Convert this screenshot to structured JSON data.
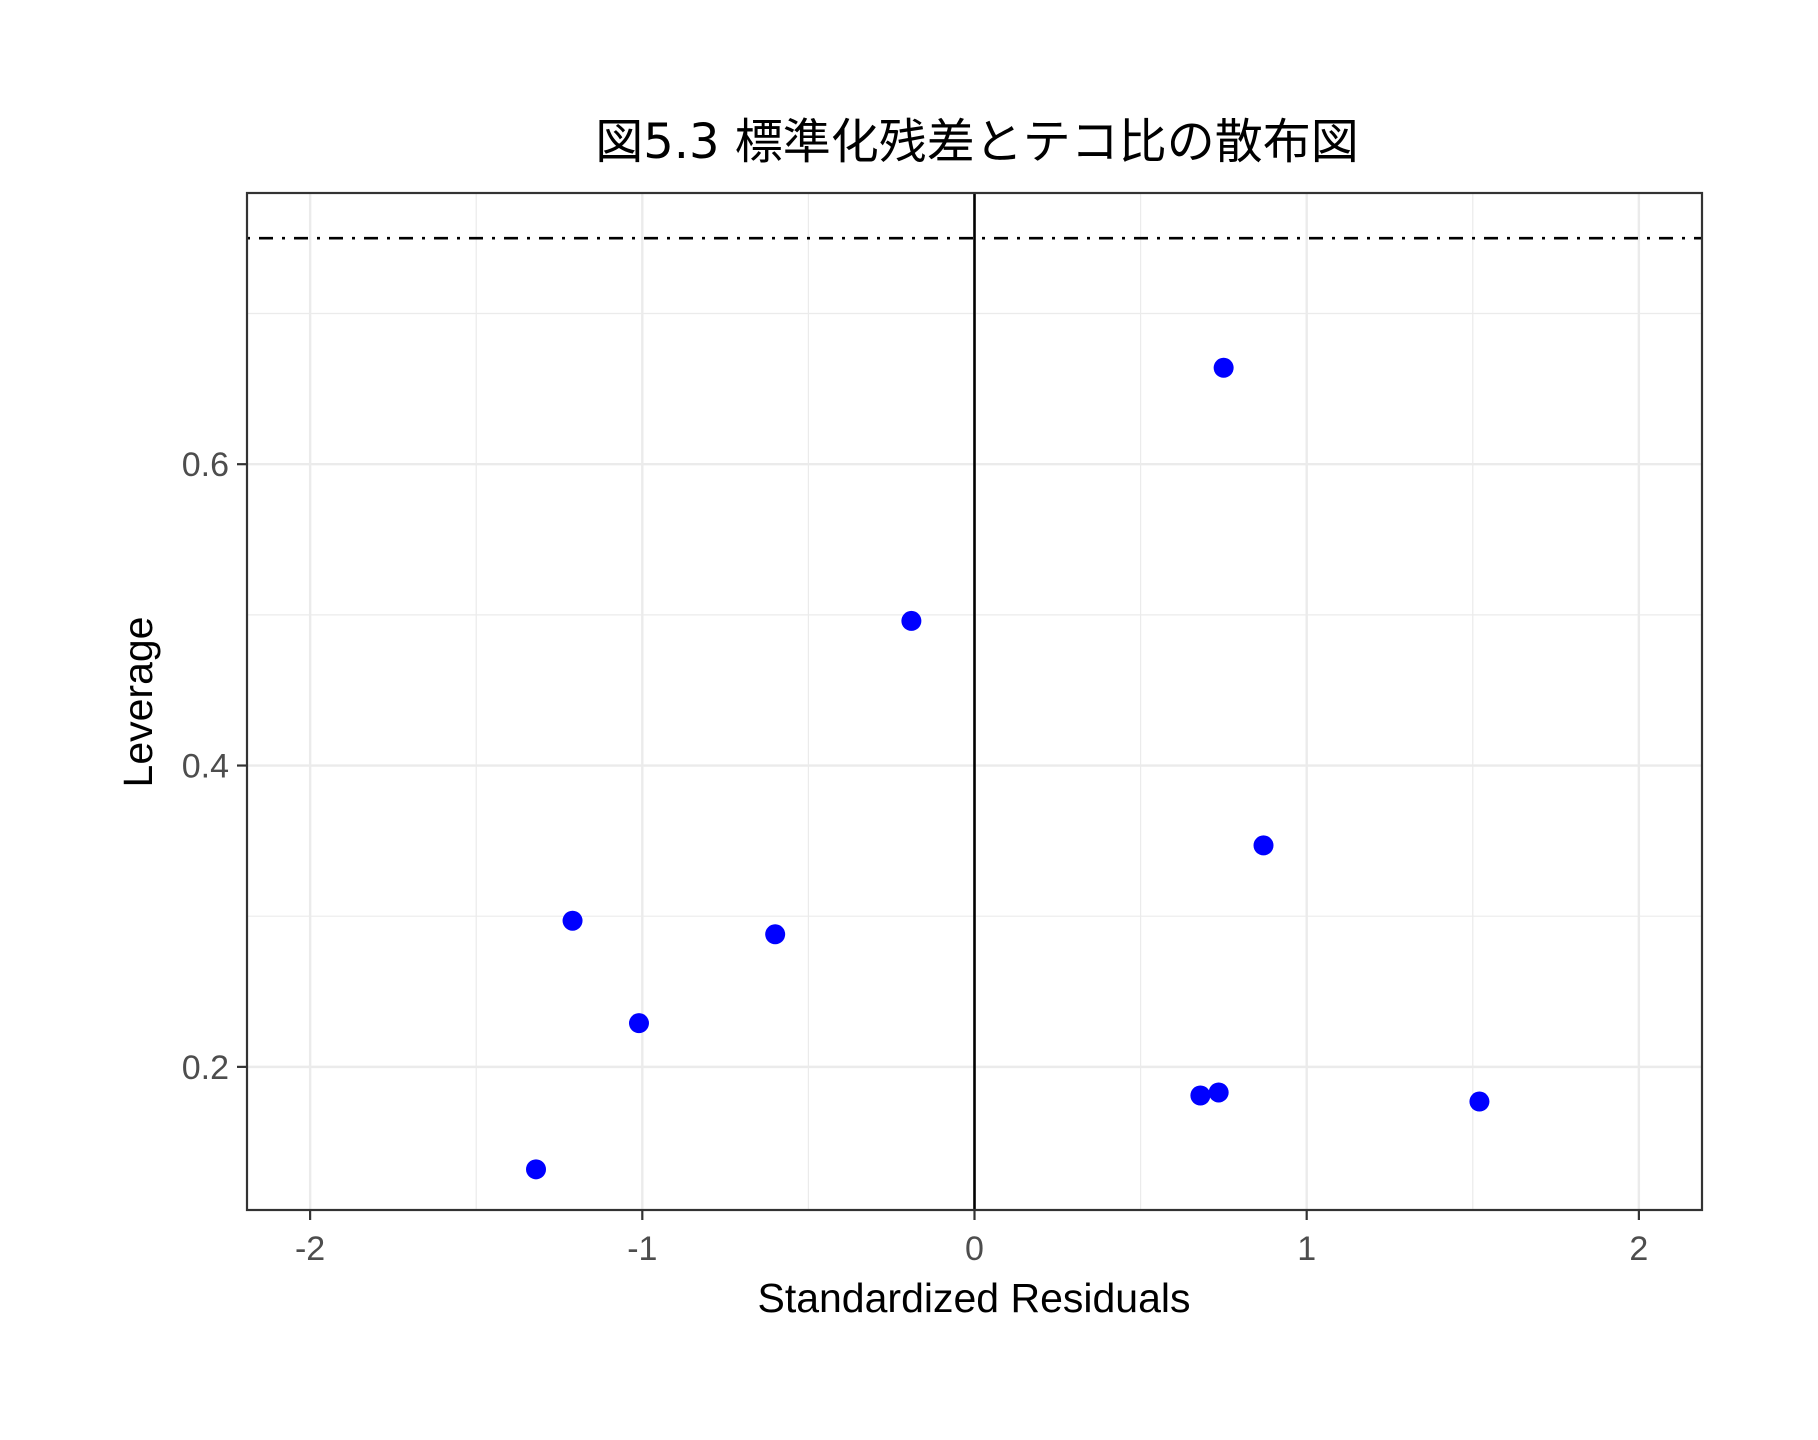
{
  "chart_data": {
    "type": "scatter",
    "title": "図5.3 標準化残差とテコ比の散布図",
    "xlabel": "Standardized Residuals",
    "ylabel": "Leverage",
    "xlim": [
      -2.19,
      2.19
    ],
    "ylim": [
      0.105,
      0.78
    ],
    "x_ticks": [
      -2,
      -1,
      0,
      1,
      2
    ],
    "x_tick_labels": [
      "-2",
      "-1",
      "0",
      "1",
      "2"
    ],
    "y_ticks": [
      0.2,
      0.4,
      0.6
    ],
    "y_tick_labels": [
      "0.2",
      "0.4",
      "0.6"
    ],
    "x_minor_ticks": [
      -1.5,
      -0.5,
      0.5,
      1.5
    ],
    "y_minor_ticks": [
      0.3,
      0.5,
      0.7
    ],
    "grid": true,
    "point_color": "#0000ff",
    "points": [
      {
        "x": 0.75,
        "y": 0.664
      },
      {
        "x": -0.19,
        "y": 0.496
      },
      {
        "x": 0.87,
        "y": 0.347
      },
      {
        "x": -1.21,
        "y": 0.297
      },
      {
        "x": -0.6,
        "y": 0.288
      },
      {
        "x": -1.01,
        "y": 0.229
      },
      {
        "x": 0.68,
        "y": 0.181
      },
      {
        "x": 0.735,
        "y": 0.183
      },
      {
        "x": 1.52,
        "y": 0.177
      },
      {
        "x": -1.32,
        "y": 0.132
      }
    ],
    "reference_lines": [
      {
        "orientation": "vertical",
        "value": 0,
        "style": "solid"
      },
      {
        "orientation": "horizontal",
        "value": 0.75,
        "style": "dotdash"
      }
    ]
  }
}
